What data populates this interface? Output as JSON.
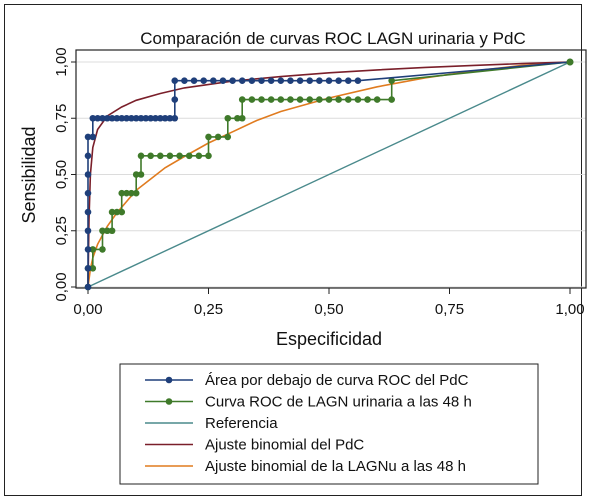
{
  "chart_data": {
    "type": "line",
    "title": "Comparación de curvas ROC LAGN urinaria y PdC",
    "xlabel": "Especificidad",
    "ylabel": "Sensibilidad",
    "xlim": [
      0,
      1
    ],
    "ylim": [
      0,
      1
    ],
    "x_ticks": [
      "0,00",
      "0,25",
      "0,50",
      "0,75",
      "1,00"
    ],
    "y_ticks": [
      "0,00",
      "0,25",
      "0,50",
      "0,75",
      "1,00"
    ],
    "grid": "horizontal",
    "legend_position": "bottom",
    "series": [
      {
        "name": "Área por debajo de curva ROC del PdC",
        "color": "#1f3f7a",
        "style": "step-markers",
        "points": [
          [
            0,
            0
          ],
          [
            0,
            0.083
          ],
          [
            0,
            0.167
          ],
          [
            0,
            0.25
          ],
          [
            0,
            0.333
          ],
          [
            0,
            0.417
          ],
          [
            0,
            0.5
          ],
          [
            0,
            0.583
          ],
          [
            0,
            0.667
          ],
          [
            0.01,
            0.667
          ],
          [
            0.01,
            0.75
          ],
          [
            0.02,
            0.75
          ],
          [
            0.03,
            0.75
          ],
          [
            0.04,
            0.75
          ],
          [
            0.05,
            0.75
          ],
          [
            0.06,
            0.75
          ],
          [
            0.07,
            0.75
          ],
          [
            0.08,
            0.75
          ],
          [
            0.09,
            0.75
          ],
          [
            0.1,
            0.75
          ],
          [
            0.11,
            0.75
          ],
          [
            0.12,
            0.75
          ],
          [
            0.13,
            0.75
          ],
          [
            0.14,
            0.75
          ],
          [
            0.15,
            0.75
          ],
          [
            0.16,
            0.75
          ],
          [
            0.17,
            0.75
          ],
          [
            0.18,
            0.75
          ],
          [
            0.18,
            0.833
          ],
          [
            0.18,
            0.917
          ],
          [
            0.2,
            0.917
          ],
          [
            0.22,
            0.917
          ],
          [
            0.24,
            0.917
          ],
          [
            0.26,
            0.917
          ],
          [
            0.28,
            0.917
          ],
          [
            0.3,
            0.917
          ],
          [
            0.32,
            0.917
          ],
          [
            0.34,
            0.917
          ],
          [
            0.36,
            0.917
          ],
          [
            0.38,
            0.917
          ],
          [
            0.4,
            0.917
          ],
          [
            0.42,
            0.917
          ],
          [
            0.44,
            0.917
          ],
          [
            0.46,
            0.917
          ],
          [
            0.48,
            0.917
          ],
          [
            0.5,
            0.917
          ],
          [
            0.52,
            0.917
          ],
          [
            0.54,
            0.917
          ],
          [
            0.56,
            0.917
          ],
          [
            1.0,
            1.0
          ]
        ]
      },
      {
        "name": "Curva ROC de LAGN urinaria a las 48 h",
        "color": "#3f7a2a",
        "style": "step-markers",
        "points": [
          [
            0,
            0
          ],
          [
            0,
            0.083
          ],
          [
            0.01,
            0.083
          ],
          [
            0.01,
            0.167
          ],
          [
            0.03,
            0.167
          ],
          [
            0.03,
            0.25
          ],
          [
            0.04,
            0.25
          ],
          [
            0.05,
            0.25
          ],
          [
            0.05,
            0.333
          ],
          [
            0.06,
            0.333
          ],
          [
            0.07,
            0.333
          ],
          [
            0.07,
            0.417
          ],
          [
            0.08,
            0.417
          ],
          [
            0.09,
            0.417
          ],
          [
            0.1,
            0.417
          ],
          [
            0.1,
            0.5
          ],
          [
            0.11,
            0.5
          ],
          [
            0.11,
            0.583
          ],
          [
            0.13,
            0.583
          ],
          [
            0.15,
            0.583
          ],
          [
            0.17,
            0.583
          ],
          [
            0.19,
            0.583
          ],
          [
            0.21,
            0.583
          ],
          [
            0.23,
            0.583
          ],
          [
            0.25,
            0.583
          ],
          [
            0.25,
            0.667
          ],
          [
            0.27,
            0.667
          ],
          [
            0.29,
            0.667
          ],
          [
            0.29,
            0.75
          ],
          [
            0.31,
            0.75
          ],
          [
            0.32,
            0.75
          ],
          [
            0.32,
            0.833
          ],
          [
            0.34,
            0.833
          ],
          [
            0.36,
            0.833
          ],
          [
            0.38,
            0.833
          ],
          [
            0.4,
            0.833
          ],
          [
            0.42,
            0.833
          ],
          [
            0.44,
            0.833
          ],
          [
            0.46,
            0.833
          ],
          [
            0.48,
            0.833
          ],
          [
            0.5,
            0.833
          ],
          [
            0.52,
            0.833
          ],
          [
            0.54,
            0.833
          ],
          [
            0.56,
            0.833
          ],
          [
            0.58,
            0.833
          ],
          [
            0.6,
            0.833
          ],
          [
            0.63,
            0.833
          ],
          [
            0.63,
            0.917
          ],
          [
            1.0,
            1.0
          ]
        ]
      },
      {
        "name": "Referencia",
        "color": "#4a8a8c",
        "style": "line",
        "points": [
          [
            0,
            0
          ],
          [
            1,
            1
          ]
        ]
      },
      {
        "name": "Ajuste binomial del PdC",
        "color": "#7a1f2a",
        "style": "smooth",
        "points": [
          [
            0,
            0
          ],
          [
            0.002,
            0.3
          ],
          [
            0.005,
            0.5
          ],
          [
            0.01,
            0.62
          ],
          [
            0.02,
            0.7
          ],
          [
            0.04,
            0.76
          ],
          [
            0.07,
            0.8
          ],
          [
            0.1,
            0.83
          ],
          [
            0.15,
            0.86
          ],
          [
            0.2,
            0.885
          ],
          [
            0.3,
            0.915
          ],
          [
            0.4,
            0.935
          ],
          [
            0.5,
            0.952
          ],
          [
            0.6,
            0.965
          ],
          [
            0.7,
            0.976
          ],
          [
            0.8,
            0.985
          ],
          [
            0.9,
            0.993
          ],
          [
            1.0,
            1.0
          ]
        ]
      },
      {
        "name": "Ajuste binomial de la LAGNu a las 48 h",
        "color": "#e07b1f",
        "style": "smooth",
        "points": [
          [
            0,
            0
          ],
          [
            0.005,
            0.08
          ],
          [
            0.01,
            0.13
          ],
          [
            0.02,
            0.19
          ],
          [
            0.04,
            0.27
          ],
          [
            0.06,
            0.33
          ],
          [
            0.08,
            0.38
          ],
          [
            0.1,
            0.43
          ],
          [
            0.13,
            0.48
          ],
          [
            0.16,
            0.53
          ],
          [
            0.2,
            0.58
          ],
          [
            0.25,
            0.64
          ],
          [
            0.3,
            0.69
          ],
          [
            0.35,
            0.74
          ],
          [
            0.4,
            0.78
          ],
          [
            0.5,
            0.84
          ],
          [
            0.6,
            0.89
          ],
          [
            0.7,
            0.93
          ],
          [
            0.8,
            0.96
          ],
          [
            0.9,
            0.985
          ],
          [
            1.0,
            1.0
          ]
        ]
      }
    ]
  }
}
